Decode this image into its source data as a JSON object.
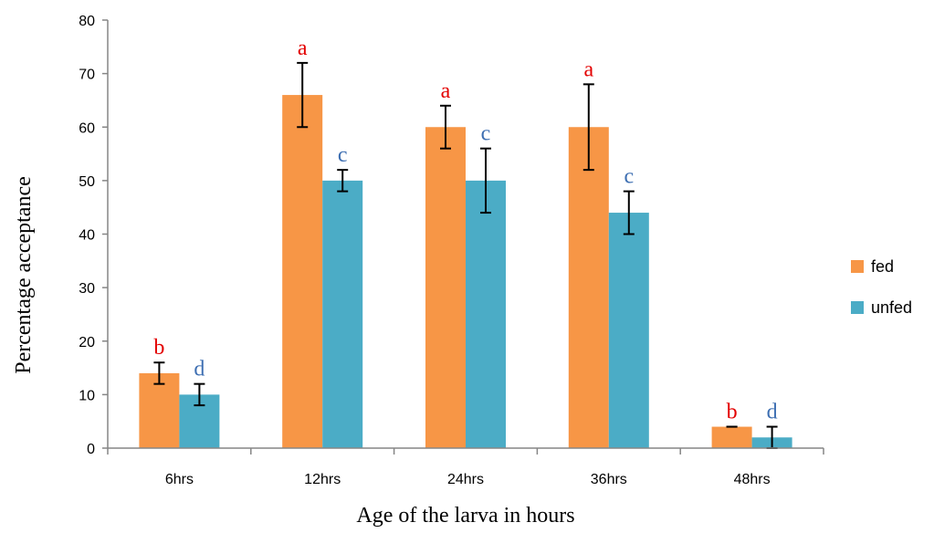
{
  "chart_data": {
    "type": "bar",
    "categories": [
      "6hrs",
      "12hrs",
      "24hrs",
      "36hrs",
      "48hrs"
    ],
    "series": [
      {
        "name": "fed",
        "values": [
          14,
          66,
          60,
          60,
          4
        ],
        "errors": [
          2,
          6,
          4,
          8,
          0
        ],
        "letters": [
          "b",
          "a",
          "a",
          "a",
          "b"
        ],
        "color": "#f79646",
        "letter_color": "#e30000"
      },
      {
        "name": "unfed",
        "values": [
          10,
          50,
          50,
          44,
          2
        ],
        "errors": [
          2,
          2,
          6,
          4,
          2
        ],
        "letters": [
          "d",
          "c",
          "c",
          "c",
          "d"
        ],
        "color": "#4bacc6",
        "letter_color": "#3e6fb2"
      }
    ],
    "xlabel": "Age of the larva in hours",
    "ylabel": "Percentage  acceptance",
    "ylim": [
      0,
      80
    ],
    "yticks": [
      0,
      10,
      20,
      30,
      40,
      50,
      60,
      70,
      80
    ],
    "grid": false,
    "legend": "right"
  }
}
